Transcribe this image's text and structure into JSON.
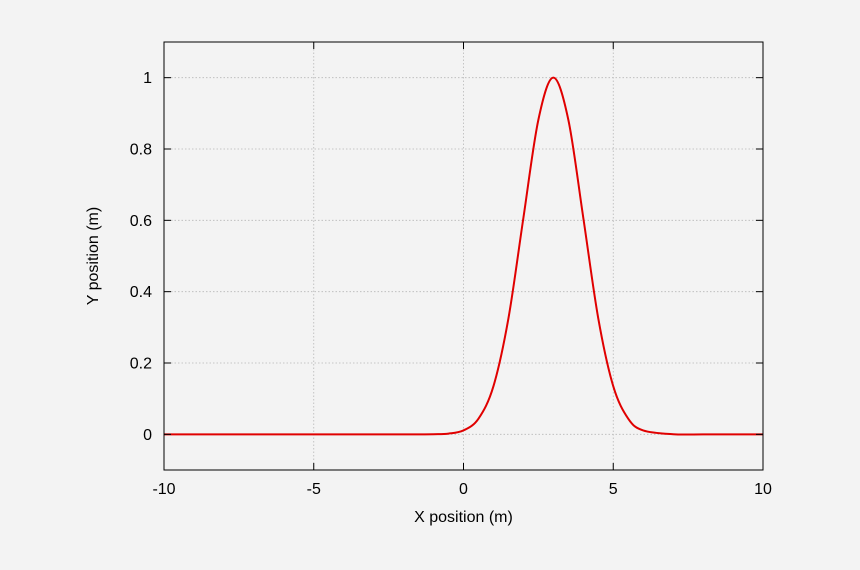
{
  "chart_data": {
    "type": "line",
    "title": "",
    "xlabel": "X position (m)",
    "ylabel": "Y position (m)",
    "xlim": [
      -10,
      10
    ],
    "ylim": [
      -0.1,
      1.1
    ],
    "xticks": [
      -10,
      -5,
      0,
      5,
      10
    ],
    "yticks": [
      0,
      0.2,
      0.4,
      0.6,
      0.8,
      1
    ],
    "xtick_labels": [
      "-10",
      "-5",
      "0",
      "5",
      "10"
    ],
    "ytick_labels": [
      "0",
      "0.2",
      "0.4",
      "0.6",
      "0.8",
      "1"
    ],
    "grid": true,
    "legend": "none",
    "series": [
      {
        "color": "#e00000",
        "x": [
          -10,
          -3,
          -2,
          -1,
          -0.5,
          0,
          0.5,
          1,
          1.5,
          2,
          2.5,
          3,
          3.5,
          4,
          4.5,
          5,
          5.5,
          6,
          7,
          8,
          10
        ],
        "y": [
          0,
          0,
          0,
          0.0003,
          0.002,
          0.011,
          0.044,
          0.135,
          0.325,
          0.607,
          0.882,
          1,
          0.882,
          0.607,
          0.325,
          0.135,
          0.044,
          0.011,
          0.0003,
          0,
          0
        ]
      }
    ]
  }
}
